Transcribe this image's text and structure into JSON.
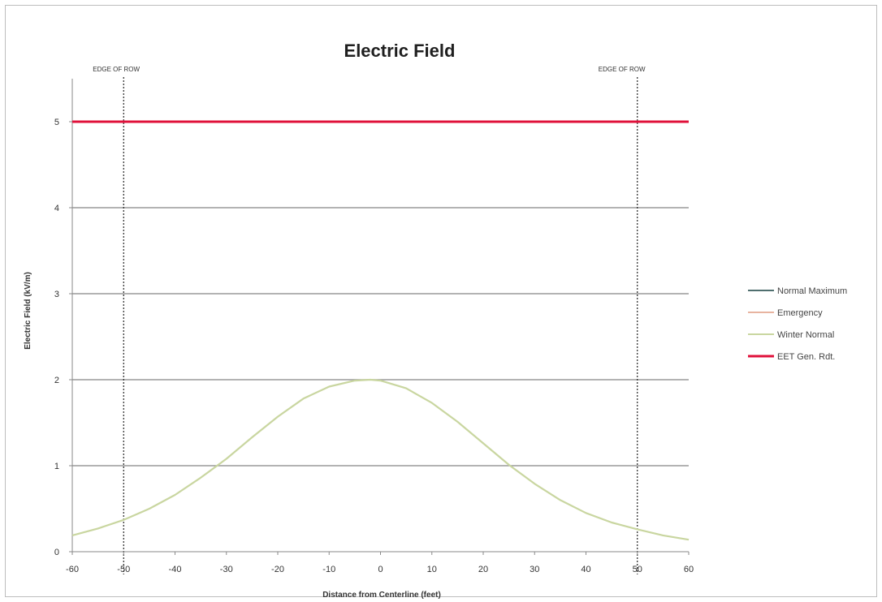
{
  "chart_data": {
    "type": "line",
    "title": "Electric Field",
    "xlabel": "Distance from Centerline (feet)",
    "ylabel": "Electric Field (kV/m)",
    "xlim": [
      -60,
      60
    ],
    "ylim": [
      0,
      5.5
    ],
    "x_ticks": [
      -60,
      -50,
      -40,
      -30,
      -20,
      -10,
      0,
      10,
      20,
      30,
      40,
      50,
      60
    ],
    "x_tick_labels": [
      "-60",
      "-50",
      "-40",
      "-30",
      "-20",
      "-10",
      "0",
      "10",
      "20",
      "30",
      "40",
      "50",
      "60"
    ],
    "y_ticks": [
      0,
      1,
      2,
      3,
      4,
      5
    ],
    "y_tick_labels": [
      "0",
      "1",
      "2",
      "3",
      "4",
      "5"
    ],
    "grid": true,
    "legend_position": "right",
    "x": [
      -60,
      -55,
      -50,
      -45,
      -40,
      -35,
      -30,
      -25,
      -20,
      -15,
      -10,
      -5,
      -2,
      0,
      5,
      10,
      15,
      20,
      25,
      30,
      35,
      40,
      45,
      50,
      55,
      60
    ],
    "series": [
      {
        "name": "Normal Maximum",
        "color": "#4f6f6f",
        "values": [
          0.19,
          0.27,
          0.37,
          0.5,
          0.66,
          0.86,
          1.08,
          1.33,
          1.57,
          1.78,
          1.92,
          1.99,
          2.0,
          1.99,
          1.9,
          1.73,
          1.51,
          1.26,
          1.01,
          0.79,
          0.6,
          0.45,
          0.34,
          0.26,
          0.19,
          0.14
        ]
      },
      {
        "name": "Emergency",
        "color": "#e8b4a0",
        "values": [
          0.19,
          0.27,
          0.37,
          0.5,
          0.66,
          0.86,
          1.08,
          1.33,
          1.57,
          1.78,
          1.92,
          1.99,
          2.0,
          1.99,
          1.9,
          1.73,
          1.51,
          1.26,
          1.01,
          0.79,
          0.6,
          0.45,
          0.34,
          0.26,
          0.19,
          0.14
        ]
      },
      {
        "name": "Winter Normal",
        "color": "#c9d6a0",
        "values": [
          0.19,
          0.27,
          0.37,
          0.5,
          0.66,
          0.86,
          1.08,
          1.33,
          1.57,
          1.78,
          1.92,
          1.99,
          2.0,
          1.99,
          1.9,
          1.73,
          1.51,
          1.26,
          1.01,
          0.79,
          0.6,
          0.45,
          0.34,
          0.26,
          0.19,
          0.14
        ]
      },
      {
        "name": "EET Gen. Rdt.",
        "color": "#e0103a",
        "values": [
          5,
          5,
          5,
          5,
          5,
          5,
          5,
          5,
          5,
          5,
          5,
          5,
          5,
          5,
          5,
          5,
          5,
          5,
          5,
          5,
          5,
          5,
          5,
          5,
          5,
          5
        ]
      }
    ],
    "annotations": [
      {
        "text": "EDGE OF ROW",
        "x": -50
      },
      {
        "text": "EDGE OF ROW",
        "x": 50
      }
    ]
  }
}
